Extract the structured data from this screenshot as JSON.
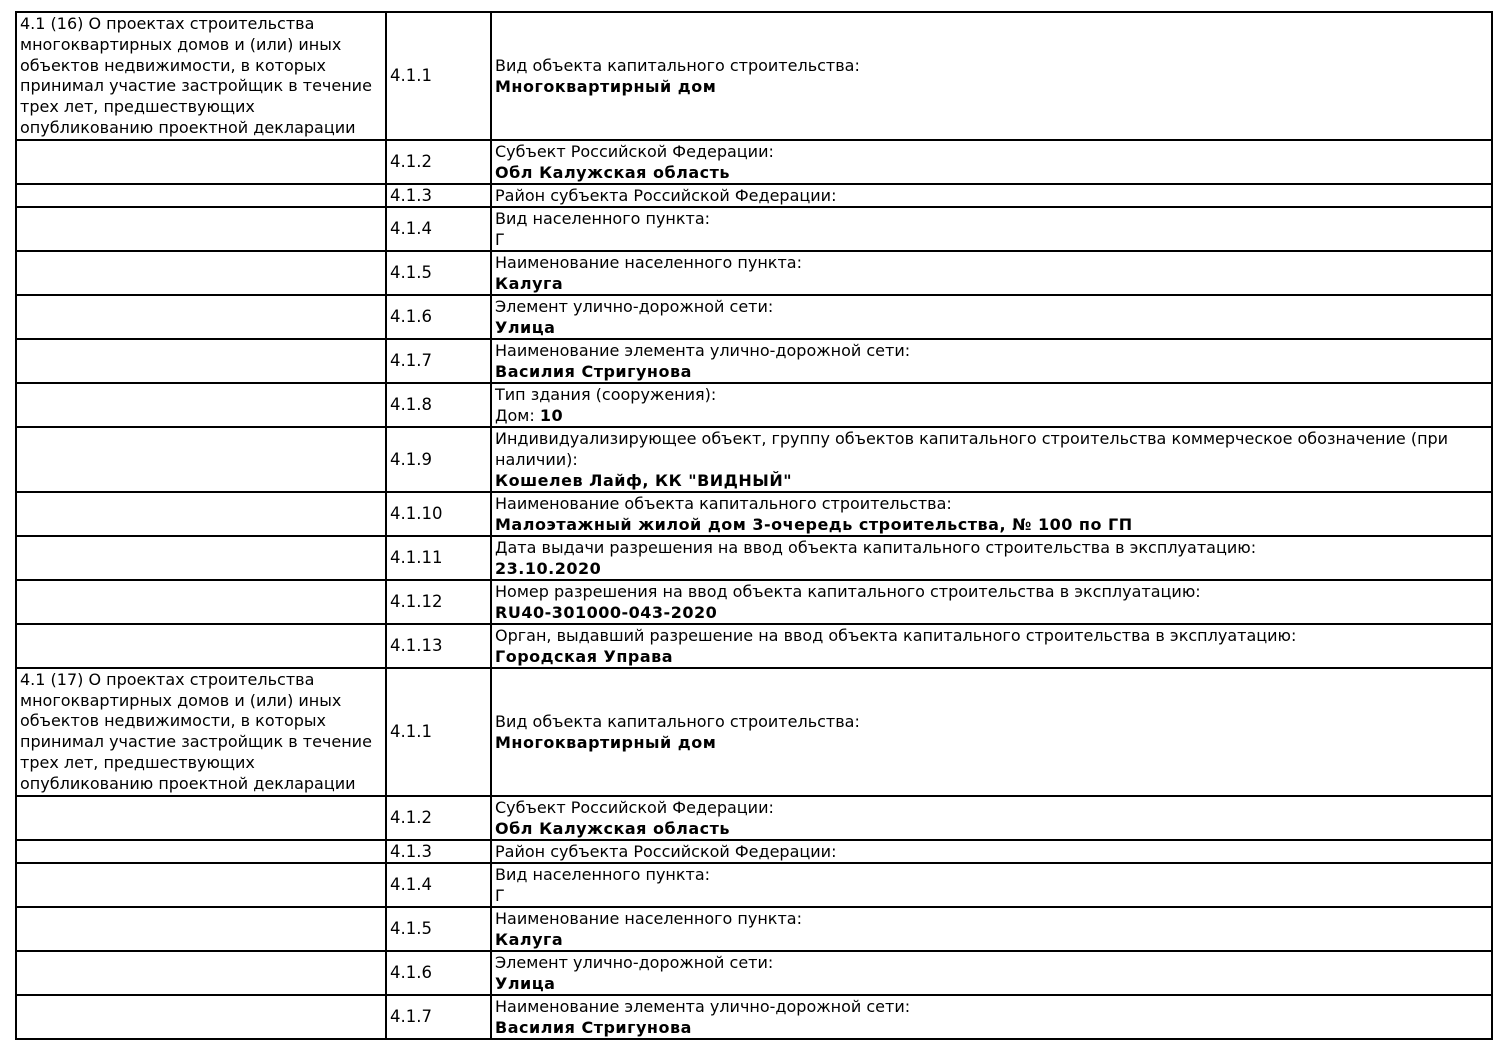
{
  "page": {
    "background_color": "#ffffff",
    "text_color": "#000000",
    "border_color": "#000000"
  },
  "document": {
    "sections": [
      {
        "header": "4.1 (16) О проектах строительства многоквартирных домов и (или) иных объектов недвижимости, в которых принимал участие застройщик в течение трех лет, предшествующих опубликованию проектной декларации",
        "rows": [
          {
            "num": "4.1.1",
            "label": "Вид объекта капитального строительства:",
            "value": "Многоквартирный дом",
            "tall": true
          },
          {
            "num": "4.1.2",
            "label": "Субъект Российской Федерации:",
            "value": "Обл Калужская область"
          },
          {
            "num": "4.1.3",
            "label": "Район субъекта Российской Федерации:"
          },
          {
            "num": "4.1.4",
            "label": "Вид населенного пункта:",
            "value_plain": "Г"
          },
          {
            "num": "4.1.5",
            "label": "Наименование населенного пункта:",
            "value": "Калуга"
          },
          {
            "num": "4.1.6",
            "label": "Элемент улично-дорожной сети:",
            "value": "Улица"
          },
          {
            "num": "4.1.7",
            "label": "Наименование элемента улично-дорожной сети:",
            "value": "Василия Стригунова"
          },
          {
            "num": "4.1.8",
            "label": "Тип здания (сооружения):",
            "value_prefix": "Дом: ",
            "value": "10"
          },
          {
            "num": "4.1.9",
            "label": "Индивидуализирующее объект, группу объектов капитального строительства коммерческое обозначение (при наличии):",
            "value": "Кошелев Лайф, КК \"ВИДНЫЙ\"",
            "wrap": true
          },
          {
            "num": "4.1.10",
            "label": "Наименование объекта капитального строительства:",
            "value": "Малоэтажный жилой дом 3-очередь строительства, № 100 по ГП"
          },
          {
            "num": "4.1.11",
            "label": "Дата выдачи разрешения на ввод объекта капитального строительства в эксплуатацию:",
            "value": "23.10.2020"
          },
          {
            "num": "4.1.12",
            "label": "Номер разрешения на ввод объекта капитального строительства в эксплуатацию:",
            "value": "RU40-301000-043-2020"
          },
          {
            "num": "4.1.13",
            "label": "Орган, выдавший разрешение на ввод объекта капитального строительства в эксплуатацию:",
            "value": "Городская Управа"
          }
        ]
      },
      {
        "header": "4.1 (17) О проектах строительства многоквартирных домов и (или) иных объектов недвижимости, в которых принимал участие застройщик в течение трех лет, предшествующих опубликованию проектной декларации",
        "rows": [
          {
            "num": "4.1.1",
            "label": "Вид объекта капитального строительства:",
            "value": "Многоквартирный дом",
            "tall": true
          },
          {
            "num": "4.1.2",
            "label": "Субъект Российской Федерации:",
            "value": "Обл Калужская область"
          },
          {
            "num": "4.1.3",
            "label": "Район субъекта Российской Федерации:"
          },
          {
            "num": "4.1.4",
            "label": "Вид населенного пункта:",
            "value_plain": "Г"
          },
          {
            "num": "4.1.5",
            "label": "Наименование населенного пункта:",
            "value": "Калуга"
          },
          {
            "num": "4.1.6",
            "label": "Элемент улично-дорожной сети:",
            "value": "Улица"
          },
          {
            "num": "4.1.7",
            "label": "Наименование элемента улично-дорожной сети:",
            "value": "Василия Стригунова"
          }
        ]
      }
    ]
  }
}
